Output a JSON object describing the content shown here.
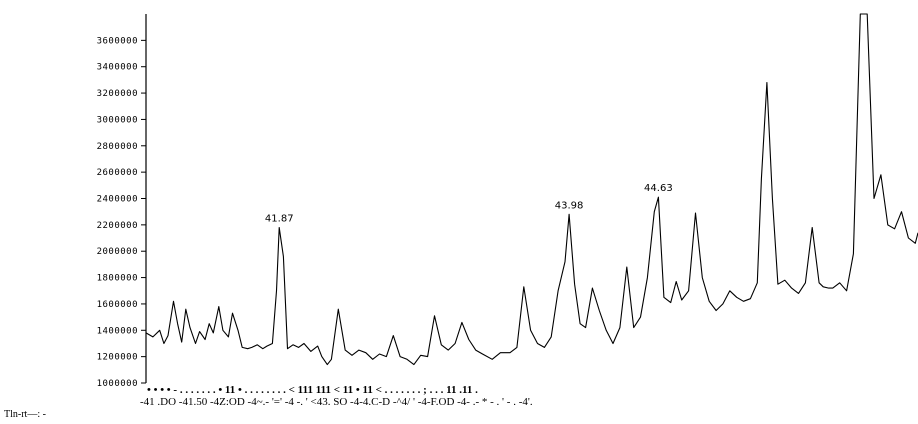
{
  "chart_data": {
    "type": "line",
    "title": "",
    "xlabel": "Tln-rt—: -",
    "ylabel": "",
    "ylim": [
      1000000,
      3800000
    ],
    "xlim": [
      40.9,
      46.52
    ],
    "yticks": [
      1000000,
      1200000,
      1400000,
      1600000,
      1800000,
      2000000,
      2200000,
      2400000,
      2600000,
      2800000,
      3000000,
      3200000,
      3400000,
      3600000
    ],
    "ytick_labels": [
      "1000000",
      "1200000",
      "1400000",
      "1600000",
      "1800000",
      "2000000",
      "2200000",
      "2400000",
      "2600000",
      "2800000",
      "3000000",
      "3200000",
      "3400000",
      "3600000"
    ],
    "xtick_row_text": "-41 .DO  -41.50  -4Z:OD  -4~.-  '='  -4 -.   '   <43. SO  -4-4.C-D  -^4/   '   -4-F.OD  -4-  .-  *   -    .    '   -    .    -4'.",
    "xtick_dot_row_text": "•  • • • -  . . . . . . . • 11 • . . . . . . . . < 111  111  <  11 • 11  <  . . . . . . . ; . . . 11 .11 .",
    "peak_labels": [
      {
        "x": 41.87,
        "y": 2180000,
        "label": "41.87"
      },
      {
        "x": 43.98,
        "y": 2280000,
        "label": "43.98"
      },
      {
        "x": 44.63,
        "y": 2410000,
        "label": "44.63"
      }
    ],
    "grid": false,
    "legend": "none",
    "line_color": "#000000",
    "series": [
      {
        "x": [
          40.9,
          40.95,
          41.0,
          41.03,
          41.06,
          41.1,
          41.13,
          41.16,
          41.19,
          41.22,
          41.26,
          41.29,
          41.33,
          41.36,
          41.39,
          41.43,
          41.46,
          41.5,
          41.53,
          41.57,
          41.6,
          41.64,
          41.67,
          41.71,
          41.75,
          41.78,
          41.82,
          41.85,
          41.87,
          41.9,
          41.93,
          41.97,
          42.01,
          42.05,
          42.1,
          42.15,
          42.18,
          42.22,
          42.25,
          42.3,
          42.35,
          42.4,
          42.45,
          42.5,
          42.55,
          42.6,
          42.65,
          42.7,
          42.75,
          42.8,
          42.85,
          42.9,
          42.95,
          43.0,
          43.05,
          43.1,
          43.15,
          43.2,
          43.25,
          43.3,
          43.35,
          43.42,
          43.48,
          43.55,
          43.6,
          43.65,
          43.7,
          43.75,
          43.8,
          43.85,
          43.9,
          43.95,
          43.98,
          44.02,
          44.06,
          44.1,
          44.15,
          44.2,
          44.25,
          44.3,
          44.35,
          44.4,
          44.45,
          44.5,
          44.55,
          44.6,
          44.63,
          44.67,
          44.72,
          44.76,
          44.8,
          44.85,
          44.9,
          44.95,
          45.0,
          45.05,
          45.1,
          45.15,
          45.2,
          45.25,
          45.3,
          45.35,
          45.38,
          45.42,
          45.46,
          45.5,
          45.55,
          45.6,
          45.65,
          45.7,
          45.75,
          45.8,
          45.83,
          45.87,
          45.9,
          45.95,
          46.0,
          46.05,
          46.1,
          46.15,
          46.2,
          46.25,
          46.3,
          46.35,
          46.4,
          46.45,
          46.5,
          46.52
        ],
        "y": [
          1380000,
          1350000,
          1400000,
          1300000,
          1360000,
          1620000,
          1450000,
          1310000,
          1560000,
          1420000,
          1300000,
          1390000,
          1330000,
          1450000,
          1380000,
          1580000,
          1400000,
          1350000,
          1530000,
          1400000,
          1270000,
          1260000,
          1270000,
          1290000,
          1260000,
          1280000,
          1300000,
          1700000,
          2180000,
          1960000,
          1260000,
          1290000,
          1270000,
          1300000,
          1240000,
          1280000,
          1200000,
          1140000,
          1180000,
          1560000,
          1250000,
          1210000,
          1250000,
          1230000,
          1180000,
          1220000,
          1200000,
          1360000,
          1200000,
          1180000,
          1140000,
          1210000,
          1200000,
          1510000,
          1290000,
          1250000,
          1300000,
          1460000,
          1330000,
          1250000,
          1220000,
          1180000,
          1230000,
          1230000,
          1270000,
          1730000,
          1400000,
          1300000,
          1270000,
          1350000,
          1700000,
          1920000,
          2280000,
          1750000,
          1450000,
          1420000,
          1720000,
          1550000,
          1400000,
          1300000,
          1420000,
          1880000,
          1420000,
          1500000,
          1800000,
          2300000,
          2410000,
          1650000,
          1610000,
          1770000,
          1630000,
          1700000,
          2290000,
          1800000,
          1620000,
          1550000,
          1600000,
          1700000,
          1650000,
          1620000,
          1640000,
          1760000,
          2550000,
          3280000,
          2400000,
          1750000,
          1780000,
          1720000,
          1680000,
          1760000,
          2180000,
          1760000,
          1730000,
          1720000,
          1720000,
          1760000,
          1700000,
          1980000,
          3800000,
          3800000,
          2400000,
          2580000,
          2200000,
          2170000,
          2300000,
          2100000,
          2060000,
          2140000
        ]
      }
    ]
  }
}
